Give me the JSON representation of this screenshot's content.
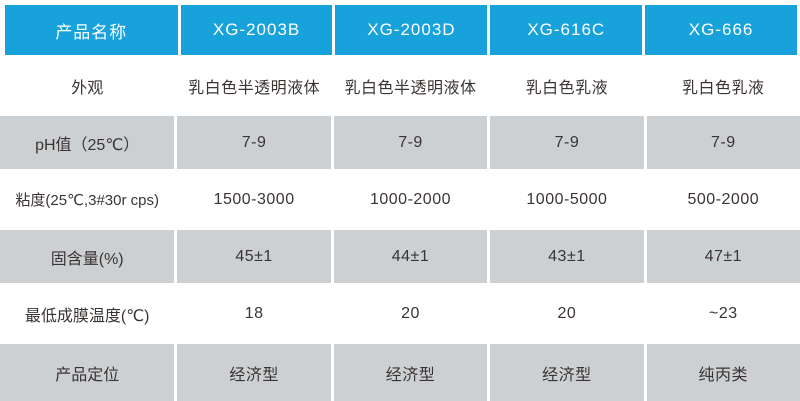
{
  "theme": {
    "header_bg": "#18a2dc",
    "header_text": "#ffffff",
    "stripe_bg": "#cdd0d3",
    "body_text": "#3a3432",
    "background": "#ffffff"
  },
  "table": {
    "header": [
      "产品名称",
      "XG-2003B",
      "XG-2003D",
      "XG-616C",
      "XG-666"
    ],
    "rows": [
      {
        "label": "外观",
        "values": [
          "乳白色半透明液体",
          "乳白色半透明液体",
          "乳白色乳液",
          "乳白色乳液"
        ]
      },
      {
        "label": "pH值（25℃）",
        "values": [
          "7-9",
          "7-9",
          "7-9",
          "7-9"
        ]
      },
      {
        "label": "粘度(25℃,3#30r cps)",
        "values": [
          "1500-3000",
          "1000-2000",
          "1000-5000",
          "500-2000"
        ]
      },
      {
        "label": "固含量(%)",
        "values": [
          "45±1",
          "44±1",
          "43±1",
          "47±1"
        ]
      },
      {
        "label": "最低成膜温度(℃)",
        "values": [
          "18",
          "20",
          "20",
          "~23"
        ]
      },
      {
        "label": "产品定位",
        "values": [
          "经济型",
          "经济型",
          "经济型",
          "纯丙类"
        ]
      }
    ]
  }
}
